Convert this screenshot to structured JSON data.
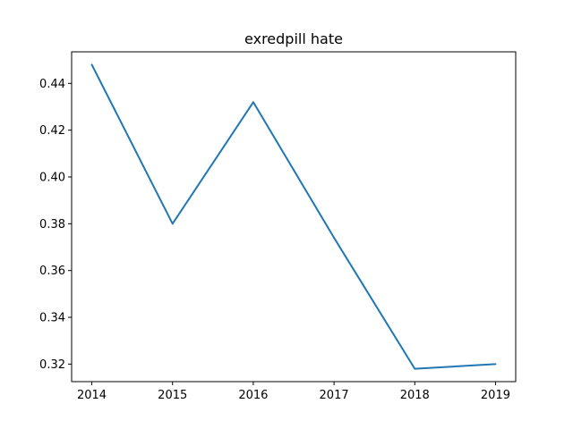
{
  "chart_data": {
    "type": "line",
    "title": "exredpill hate",
    "xlabel": "",
    "ylabel": "",
    "x": [
      2014,
      2015,
      2016,
      2017,
      2018,
      2019
    ],
    "series": [
      {
        "values": [
          0.448,
          0.38,
          0.432,
          0.374,
          0.318,
          0.32
        ]
      }
    ],
    "xlim": [
      2013.75,
      2019.25
    ],
    "ylim": [
      0.3125,
      0.4535
    ],
    "xticks": [
      "2014",
      "2015",
      "2016",
      "2017",
      "2018",
      "2019"
    ],
    "yticks": [
      "0.32",
      "0.34",
      "0.36",
      "0.38",
      "0.40",
      "0.42",
      "0.44"
    ],
    "grid": false,
    "line_color": "#1f77b4"
  }
}
